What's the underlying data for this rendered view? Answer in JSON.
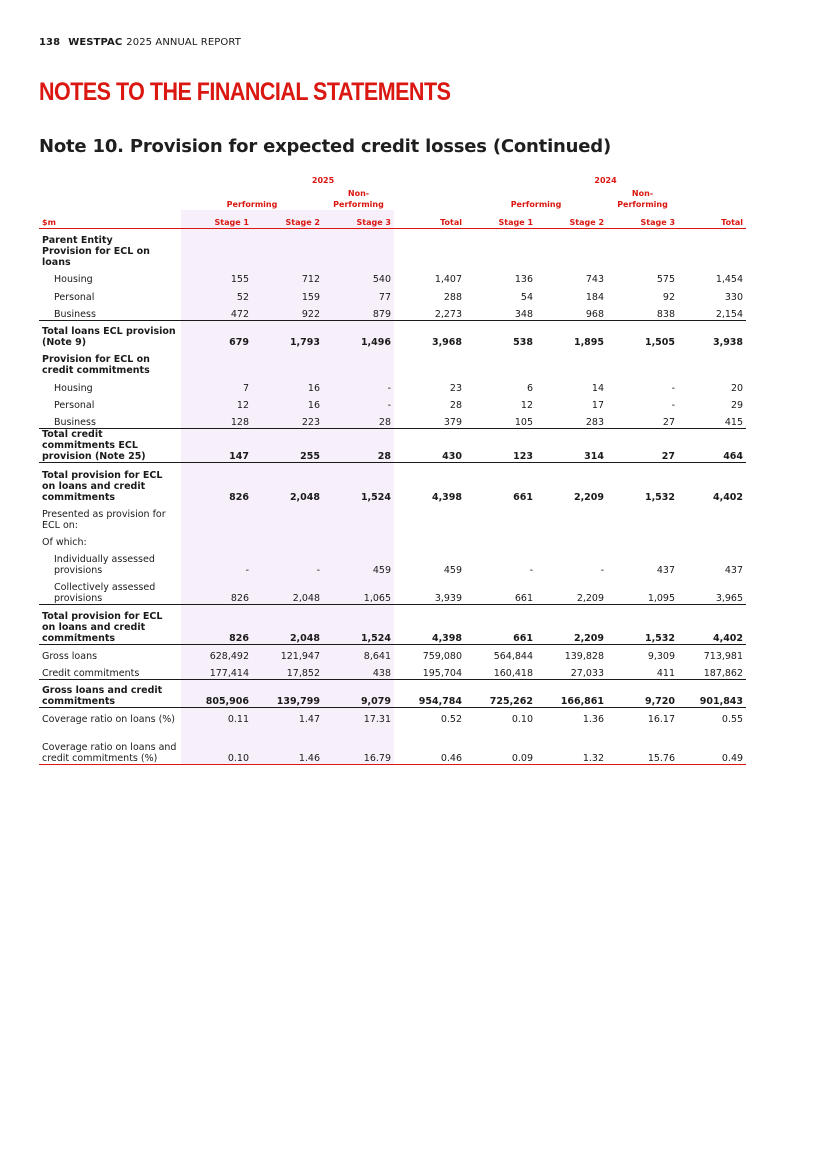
{
  "header": {
    "page_number": "138",
    "brand": "WESTPAC",
    "report": "2025 ANNUAL REPORT"
  },
  "section_title": "NOTES TO THE FINANCIAL STATEMENTS",
  "note_title": "Note 10. Provision for expected credit losses (Continued)",
  "table": {
    "years": [
      "2025",
      "2024"
    ],
    "group_headers": [
      "Performing",
      "Non-\nPerforming"
    ],
    "unit": "$m",
    "columns": [
      "Stage 1",
      "Stage 2",
      "Stage 3",
      "Total",
      "Stage 1",
      "Stage 2",
      "Stage 3",
      "Total"
    ],
    "rows": [
      {
        "label": "Parent Entity",
        "bold": true,
        "values": []
      },
      {
        "label": "Provision for ECL on loans",
        "bold": true,
        "values": []
      },
      {
        "label": "Housing",
        "indent": true,
        "values": [
          "155",
          "712",
          "540",
          "1,407",
          "136",
          "743",
          "575",
          "1,454"
        ]
      },
      {
        "label": "Personal",
        "indent": true,
        "values": [
          "52",
          "159",
          "77",
          "288",
          "54",
          "184",
          "92",
          "330"
        ]
      },
      {
        "label": "Business",
        "indent": true,
        "values": [
          "472",
          "922",
          "879",
          "2,273",
          "348",
          "968",
          "838",
          "2,154"
        ]
      },
      {
        "label": "Total loans ECL provision (Note 9)",
        "bold": true,
        "values": [
          "679",
          "1,793",
          "1,496",
          "3,968",
          "538",
          "1,895",
          "1,505",
          "3,938"
        ]
      },
      {
        "label": "Provision for ECL on credit commitments",
        "bold": true,
        "values": []
      },
      {
        "label": "Housing",
        "indent": true,
        "values": [
          "7",
          "16",
          "-",
          "23",
          "6",
          "14",
          "-",
          "20"
        ]
      },
      {
        "label": "Personal",
        "indent": true,
        "values": [
          "12",
          "16",
          "-",
          "28",
          "12",
          "17",
          "-",
          "29"
        ]
      },
      {
        "label": "Business",
        "indent": true,
        "values": [
          "128",
          "223",
          "28",
          "379",
          "105",
          "283",
          "27",
          "415"
        ]
      },
      {
        "label": "Total credit commitments ECL provision (Note 25)",
        "bold": true,
        "values": [
          "147",
          "255",
          "28",
          "430",
          "123",
          "314",
          "27",
          "464"
        ]
      },
      {
        "label": "Total provision for ECL on loans and credit commitments",
        "bold": true,
        "values": [
          "826",
          "2,048",
          "1,524",
          "4,398",
          "661",
          "2,209",
          "1,532",
          "4,402"
        ]
      },
      {
        "label": "Presented as provision for ECL on:",
        "values": []
      },
      {
        "label": "Of which:",
        "values": []
      },
      {
        "label": "Individually assessed provisions",
        "indent": true,
        "values": [
          "-",
          "-",
          "459",
          "459",
          "-",
          "-",
          "437",
          "437"
        ]
      },
      {
        "label": "Collectively assessed provisions",
        "indent": true,
        "values": [
          "826",
          "2,048",
          "1,065",
          "3,939",
          "661",
          "2,209",
          "1,095",
          "3,965"
        ]
      },
      {
        "label": "Total provision for ECL on loans and credit commitments",
        "bold": true,
        "values": [
          "826",
          "2,048",
          "1,524",
          "4,398",
          "661",
          "2,209",
          "1,532",
          "4,402"
        ]
      },
      {
        "label": "Gross loans",
        "values": [
          "628,492",
          "121,947",
          "8,641",
          "759,080",
          "564,844",
          "139,828",
          "9,309",
          "713,981"
        ]
      },
      {
        "label": "Credit commitments",
        "values": [
          "177,414",
          "17,852",
          "438",
          "195,704",
          "160,418",
          "27,033",
          "411",
          "187,862"
        ]
      },
      {
        "label": "Gross loans and credit commitments",
        "bold": true,
        "values": [
          "805,906",
          "139,799",
          "9,079",
          "954,784",
          "725,262",
          "166,861",
          "9,720",
          "901,843"
        ]
      },
      {
        "label": "Coverage ratio on loans (%)",
        "values": [
          "0.11",
          "1.47",
          "17.31",
          "0.52",
          "0.10",
          "1.36",
          "16.17",
          "0.55"
        ]
      },
      {
        "label": "Coverage ratio on loans and credit commitments (%)",
        "values": [
          "0.10",
          "1.46",
          "16.79",
          "0.46",
          "0.09",
          "1.32",
          "15.76",
          "0.49"
        ]
      }
    ]
  },
  "colors": {
    "accent": "#da1710",
    "shade": "#f7eff9",
    "text": "#1a1a1a"
  }
}
